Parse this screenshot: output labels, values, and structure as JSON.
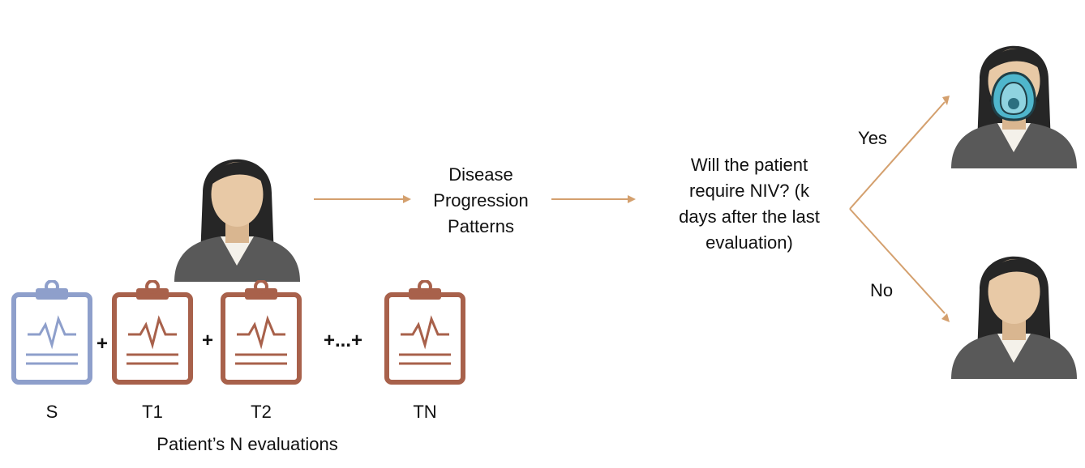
{
  "colors": {
    "arrow": "#D4A06E",
    "clipboard_first": "#8E9FCB",
    "clipboard_other": "#A8614B",
    "hair": "#262626",
    "skin": "#E8C9A6",
    "suit": "#595959",
    "mask": "#4FB6CC"
  },
  "patient_icon": "patient-avatar-icon",
  "evaluations": {
    "items": [
      {
        "label": "S",
        "icon": "clipboard-icon",
        "color": "#8E9FCB"
      },
      {
        "label": "T1",
        "icon": "clipboard-icon",
        "color": "#A8614B"
      },
      {
        "label": "T2",
        "icon": "clipboard-icon",
        "color": "#A8614B"
      },
      {
        "label": "TN",
        "icon": "clipboard-icon",
        "color": "#A8614B"
      }
    ],
    "separators": [
      "+",
      "+",
      "+...+"
    ],
    "caption": "Patient’s N evaluations"
  },
  "middle": {
    "patterns": [
      "Disease",
      "Progression",
      "Patterns"
    ],
    "question": [
      "Will the patient",
      "require NIV? (k",
      "days after the last",
      "evaluation)"
    ]
  },
  "outcomes": {
    "yes": "Yes",
    "no": "No",
    "yes_icon": "patient-with-niv-mask-icon",
    "no_icon": "patient-avatar-icon"
  }
}
